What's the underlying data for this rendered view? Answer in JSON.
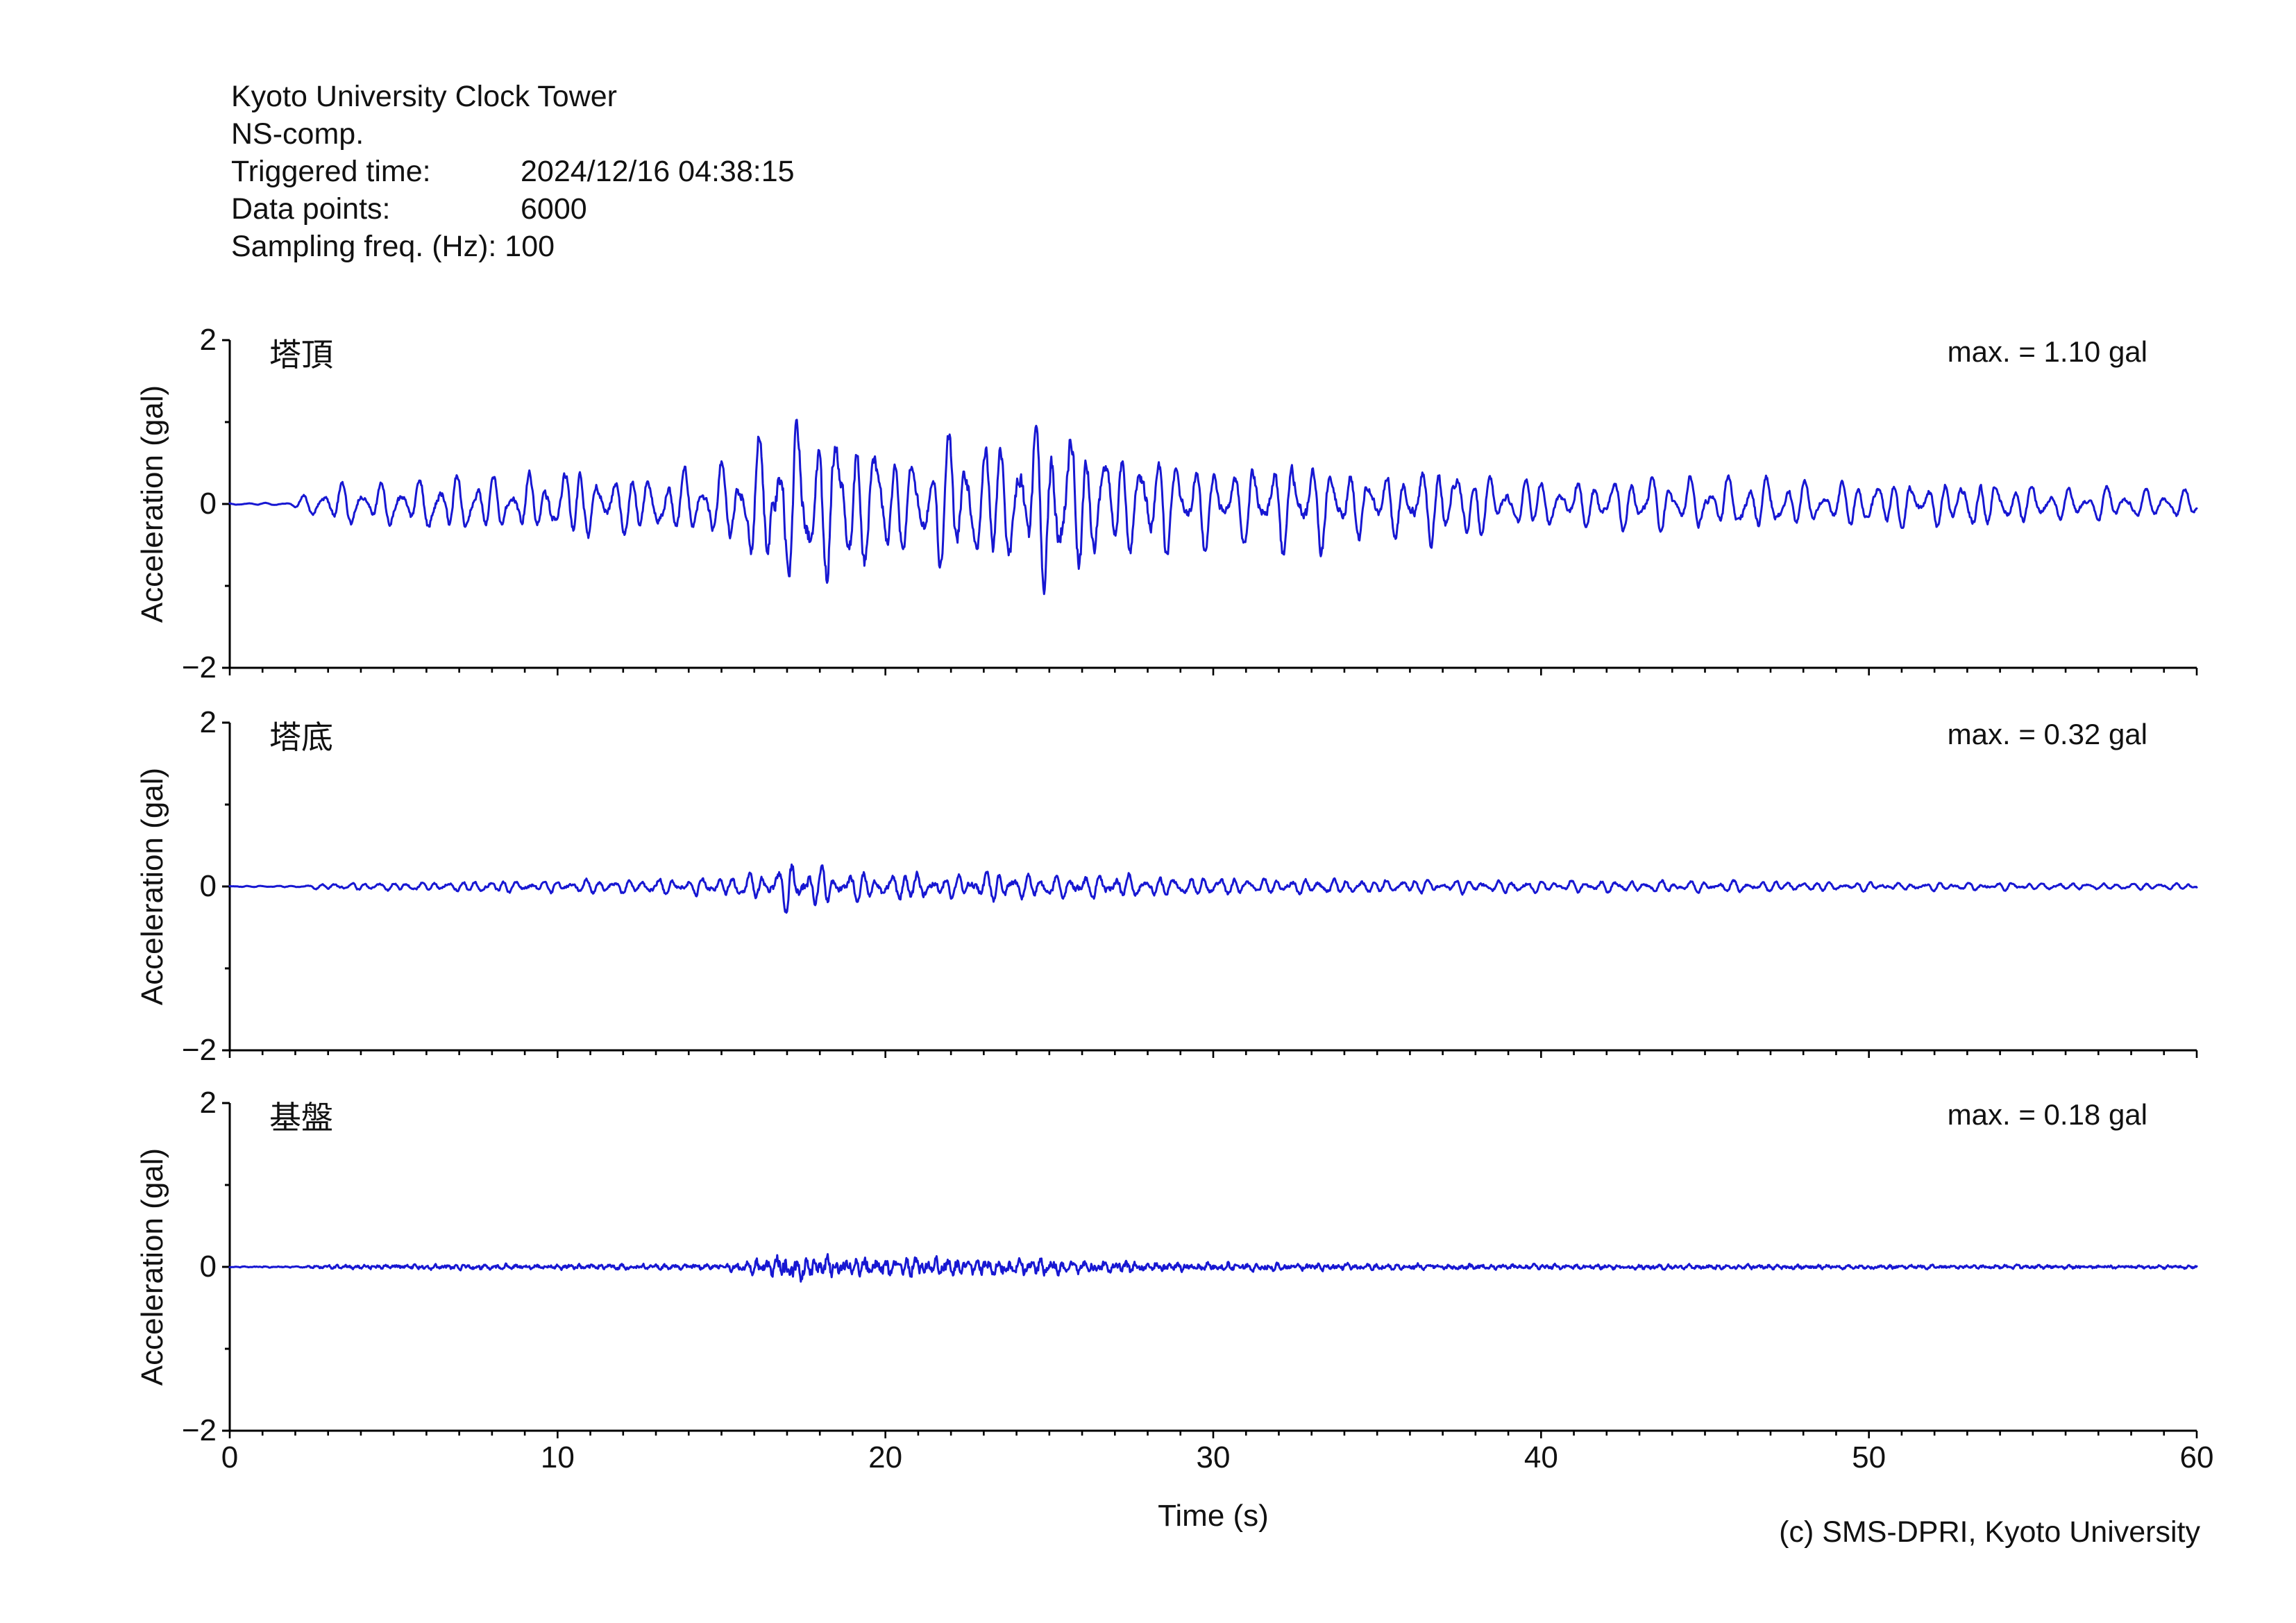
{
  "header": {
    "title": "Kyoto University Clock Tower",
    "component": "NS-comp.",
    "rows": [
      {
        "label": "Triggered time:",
        "value": "2024/12/16 04:38:15"
      },
      {
        "label": "Data points:",
        "value": "6000"
      }
    ],
    "sampling_line": "Sampling freq. (Hz): 100"
  },
  "footer": {
    "credit": "(c) SMS-DPRI, Kyoto University"
  },
  "colors": {
    "trace": "#1717D2",
    "axis": "#000000",
    "text": "#111111"
  },
  "xaxis": {
    "label": "Time (s)",
    "tick_labels": [
      "0",
      "10",
      "20",
      "30",
      "40",
      "50",
      "60"
    ],
    "tick_values": [
      0,
      10,
      20,
      30,
      40,
      50,
      60
    ],
    "minor_step_s": 1,
    "range_s": [
      0,
      60
    ]
  },
  "chart_data": [
    {
      "type": "line",
      "station": "塔頂",
      "max_label": "max. = 1.10 gal",
      "max_gal": 1.1,
      "ylabel": "Acceleration (gal)",
      "ylim": [
        -2,
        2
      ],
      "ytick_values": [
        2,
        0,
        -2
      ],
      "ytick_labels": [
        "2",
        "0",
        "−2"
      ],
      "ytick_minor": [
        1,
        -1
      ],
      "synth": {
        "f1": 1.8,
        "f2": 2.6,
        "f3": 0.85,
        "w1": 0.62,
        "w2": 0.25,
        "w3": 0.2,
        "noise": 0.18,
        "smooth": 0.55,
        "seed": 1.3
      },
      "envelope_t_gal": [
        [
          0,
          0.012
        ],
        [
          1.8,
          0.018
        ],
        [
          2.2,
          0.1
        ],
        [
          2.8,
          0.22
        ],
        [
          3.5,
          0.3
        ],
        [
          4.5,
          0.26
        ],
        [
          5.5,
          0.3
        ],
        [
          6.5,
          0.38
        ],
        [
          7.5,
          0.36
        ],
        [
          8.5,
          0.32
        ],
        [
          9.5,
          0.38
        ],
        [
          10.5,
          0.46
        ],
        [
          11.5,
          0.42
        ],
        [
          12.5,
          0.36
        ],
        [
          13.5,
          0.4
        ],
        [
          14.5,
          0.44
        ],
        [
          15.3,
          0.55
        ],
        [
          16,
          0.85
        ],
        [
          16.8,
          1.05
        ],
        [
          17.5,
          1.08
        ],
        [
          18.3,
          1.0
        ],
        [
          19.2,
          0.9
        ],
        [
          20,
          0.72
        ],
        [
          20.8,
          0.62
        ],
        [
          21.6,
          0.8
        ],
        [
          22.4,
          0.95
        ],
        [
          23.2,
          0.8
        ],
        [
          24,
          0.9
        ],
        [
          24.8,
          1.08
        ],
        [
          25.4,
          1.1
        ],
        [
          26.2,
          0.8
        ],
        [
          27,
          0.68
        ],
        [
          28,
          0.74
        ],
        [
          29,
          0.6
        ],
        [
          30,
          0.56
        ],
        [
          31,
          0.5
        ],
        [
          32,
          0.6
        ],
        [
          33,
          0.62
        ],
        [
          34,
          0.48
        ],
        [
          35,
          0.4
        ],
        [
          36,
          0.48
        ],
        [
          37,
          0.52
        ],
        [
          38,
          0.42
        ],
        [
          39,
          0.36
        ],
        [
          40,
          0.3
        ],
        [
          41,
          0.28
        ],
        [
          42,
          0.32
        ],
        [
          43,
          0.36
        ],
        [
          44,
          0.34
        ],
        [
          45,
          0.32
        ],
        [
          46,
          0.36
        ],
        [
          47,
          0.34
        ],
        [
          48,
          0.3
        ],
        [
          49,
          0.27
        ],
        [
          50,
          0.3
        ],
        [
          51,
          0.32
        ],
        [
          52,
          0.28
        ],
        [
          53,
          0.32
        ],
        [
          54,
          0.28
        ],
        [
          55,
          0.24
        ],
        [
          56,
          0.2
        ],
        [
          57,
          0.23
        ],
        [
          58,
          0.21
        ],
        [
          59,
          0.19
        ],
        [
          60,
          0.18
        ]
      ]
    },
    {
      "type": "line",
      "station": "塔底",
      "max_label": "max. = 0.32 gal",
      "max_gal": 0.32,
      "ylabel": "Acceleration (gal)",
      "ylim": [
        -2,
        2
      ],
      "ytick_values": [
        2,
        0,
        -2
      ],
      "ytick_labels": [
        "2",
        "0",
        "−2"
      ],
      "ytick_minor": [
        1,
        -1
      ],
      "synth": {
        "f1": 2.3,
        "f2": 3.2,
        "f3": 1.4,
        "w1": 0.55,
        "w2": 0.3,
        "w3": 0.18,
        "noise": 0.3,
        "smooth": 0.5,
        "seed": 2.7
      },
      "envelope_t_gal": [
        [
          0,
          0.008
        ],
        [
          2.2,
          0.012
        ],
        [
          2.6,
          0.035
        ],
        [
          4,
          0.05
        ],
        [
          6,
          0.06
        ],
        [
          8,
          0.075
        ],
        [
          10,
          0.08
        ],
        [
          12,
          0.1
        ],
        [
          14,
          0.11
        ],
        [
          15.5,
          0.13
        ],
        [
          16.4,
          0.22
        ],
        [
          17.2,
          0.32
        ],
        [
          17.8,
          0.28
        ],
        [
          18.5,
          0.2
        ],
        [
          19.5,
          0.17
        ],
        [
          20.5,
          0.2
        ],
        [
          21.5,
          0.15
        ],
        [
          22.5,
          0.17
        ],
        [
          23.5,
          0.19
        ],
        [
          24.5,
          0.15
        ],
        [
          25.5,
          0.14
        ],
        [
          26.5,
          0.17
        ],
        [
          27.5,
          0.15
        ],
        [
          28.5,
          0.13
        ],
        [
          30,
          0.12
        ],
        [
          32,
          0.1
        ],
        [
          34,
          0.09
        ],
        [
          36,
          0.085
        ],
        [
          38,
          0.08
        ],
        [
          40,
          0.075
        ],
        [
          42,
          0.07
        ],
        [
          44,
          0.075
        ],
        [
          46,
          0.07
        ],
        [
          48,
          0.06
        ],
        [
          50,
          0.055
        ],
        [
          52,
          0.05
        ],
        [
          54,
          0.05
        ],
        [
          56,
          0.045
        ],
        [
          58,
          0.04
        ],
        [
          60,
          0.04
        ]
      ]
    },
    {
      "type": "line",
      "station": "基盤",
      "max_label": "max. = 0.18 gal",
      "max_gal": 0.18,
      "ylabel": "Acceleration (gal)",
      "ylim": [
        -2,
        2
      ],
      "ytick_values": [
        2,
        0,
        -2
      ],
      "ytick_labels": [
        "2",
        "0",
        "−2"
      ],
      "ytick_minor": [
        1,
        -1
      ],
      "synth": {
        "f1": 3.2,
        "f2": 4.6,
        "f3": 1.9,
        "w1": 0.45,
        "w2": 0.3,
        "w3": 0.15,
        "noise": 0.7,
        "smooth": 0.3,
        "seed": 4.1
      },
      "envelope_t_gal": [
        [
          0,
          0.006
        ],
        [
          2.2,
          0.009
        ],
        [
          3,
          0.028
        ],
        [
          5,
          0.032
        ],
        [
          7,
          0.04
        ],
        [
          9,
          0.034
        ],
        [
          11,
          0.038
        ],
        [
          13,
          0.034
        ],
        [
          15,
          0.04
        ],
        [
          15.8,
          0.07
        ],
        [
          16.4,
          0.12
        ],
        [
          17.1,
          0.18
        ],
        [
          17.8,
          0.14
        ],
        [
          18.6,
          0.11
        ],
        [
          19.5,
          0.13
        ],
        [
          20.5,
          0.11
        ],
        [
          21.5,
          0.12
        ],
        [
          22.5,
          0.1
        ],
        [
          23.5,
          0.11
        ],
        [
          24.5,
          0.1
        ],
        [
          25.5,
          0.09
        ],
        [
          26.5,
          0.08
        ],
        [
          27.5,
          0.07
        ],
        [
          29,
          0.055
        ],
        [
          31,
          0.05
        ],
        [
          33,
          0.045
        ],
        [
          35,
          0.04
        ],
        [
          37,
          0.038
        ],
        [
          39,
          0.035
        ],
        [
          41,
          0.033
        ],
        [
          43,
          0.032
        ],
        [
          45,
          0.03
        ],
        [
          47,
          0.03
        ],
        [
          49,
          0.028
        ],
        [
          51,
          0.028
        ],
        [
          53,
          0.026
        ],
        [
          55,
          0.025
        ],
        [
          57,
          0.024
        ],
        [
          60,
          0.022
        ]
      ]
    }
  ]
}
